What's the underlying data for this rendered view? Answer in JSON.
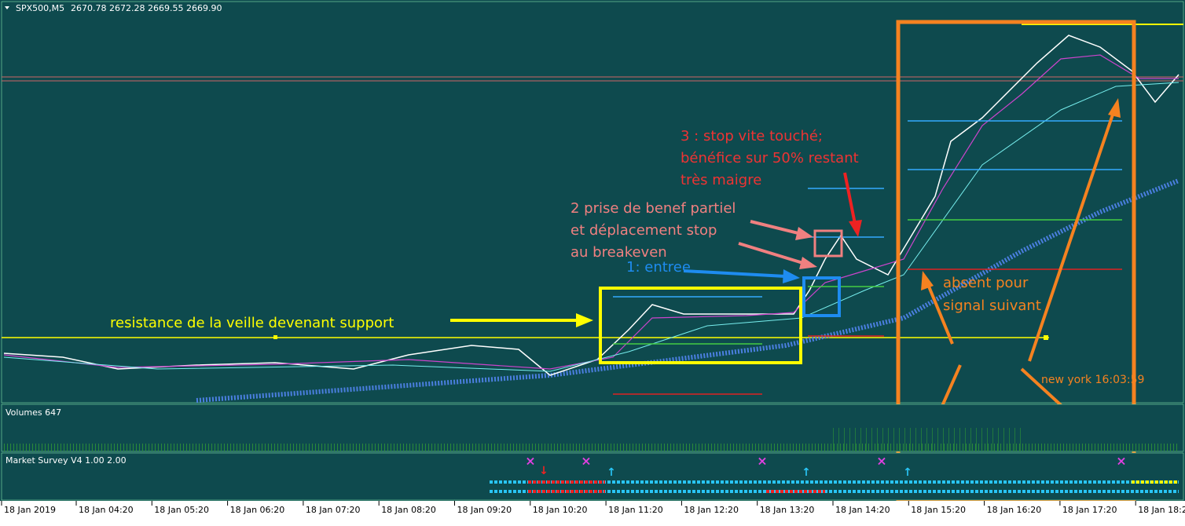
{
  "header": {
    "symbol": "SPX500,M5",
    "quote": "2670.78 2672.28 2669.55 2669.90"
  },
  "annotations": {
    "resistance": "resistance de la veille devenant support",
    "entry": "1: entree",
    "partial": [
      "2 prise de benef partiel",
      "et déplacement stop",
      "au breakeven"
    ],
    "stop": [
      "3 : stop vite touché;",
      "bénéfice sur 50% restant",
      "très maigre"
    ],
    "absent": [
      "absent pour",
      "signal suivant"
    ],
    "clock": "new york  16:03:59"
  },
  "panels": {
    "volumes": "Volumes 647",
    "survey": "Market Survey V4 1.00 2.00"
  },
  "time_axis": [
    "18 Jan 2019",
    "18 Jan 04:20",
    "18 Jan 05:20",
    "18 Jan 06:20",
    "18 Jan 07:20",
    "18 Jan 08:20",
    "18 Jan 09:20",
    "18 Jan 10:20",
    "18 Jan 11:20",
    "18 Jan 12:20",
    "18 Jan 13:20",
    "18 Jan 14:20",
    "18 Jan 15:20",
    "18 Jan 16:20",
    "18 Jan 17:20",
    "18 Jan 18:2"
  ]
}
